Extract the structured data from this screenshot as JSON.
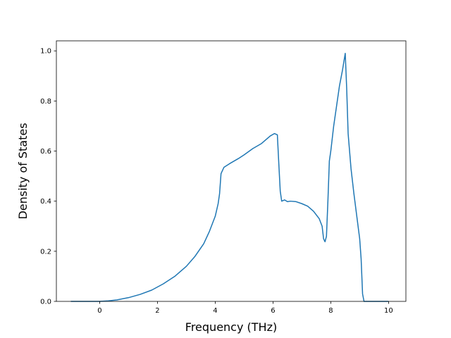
{
  "chart_data": {
    "type": "line",
    "title": "",
    "xlabel": "Frequency (THz)",
    "ylabel": "Density of States",
    "xlim": [
      -1.5,
      10.6
    ],
    "ylim": [
      0.0,
      1.04
    ],
    "x_ticks": [
      0,
      2,
      4,
      6,
      8,
      10
    ],
    "x_tick_labels": [
      "0",
      "2",
      "4",
      "6",
      "8",
      "10"
    ],
    "y_ticks": [
      0.0,
      0.2,
      0.4,
      0.6,
      0.8,
      1.0
    ],
    "y_tick_labels": [
      "0.0",
      "0.2",
      "0.4",
      "0.6",
      "0.8",
      "1.0"
    ],
    "grid": false,
    "legend": "none",
    "series": [
      {
        "color": "#1f77b4",
        "x": [
          -1.0,
          -0.5,
          0.0,
          0.3,
          0.6,
          1.0,
          1.4,
          1.8,
          2.2,
          2.6,
          3.0,
          3.3,
          3.6,
          3.8,
          4.0,
          4.1,
          4.15,
          4.2,
          4.3,
          4.5,
          4.8,
          5.0,
          5.3,
          5.6,
          5.9,
          6.05,
          6.15,
          6.2,
          6.25,
          6.3,
          6.4,
          6.5,
          6.6,
          6.8,
          7.0,
          7.2,
          7.4,
          7.6,
          7.7,
          7.75,
          7.8,
          7.85,
          7.9,
          7.95,
          8.0,
          8.1,
          8.2,
          8.3,
          8.4,
          8.5,
          8.55,
          8.6,
          8.7,
          8.8,
          9.0,
          9.05,
          9.1,
          9.15,
          9.3,
          9.6,
          10.0
        ],
        "y": [
          0.0,
          0.0,
          0.0,
          0.002,
          0.006,
          0.015,
          0.028,
          0.045,
          0.07,
          0.1,
          0.14,
          0.18,
          0.23,
          0.28,
          0.34,
          0.39,
          0.43,
          0.51,
          0.535,
          0.55,
          0.57,
          0.585,
          0.61,
          0.63,
          0.66,
          0.67,
          0.665,
          0.55,
          0.44,
          0.4,
          0.405,
          0.398,
          0.4,
          0.398,
          0.39,
          0.38,
          0.36,
          0.33,
          0.3,
          0.25,
          0.238,
          0.26,
          0.4,
          0.56,
          0.6,
          0.7,
          0.78,
          0.86,
          0.92,
          0.99,
          0.85,
          0.67,
          0.53,
          0.43,
          0.25,
          0.17,
          0.03,
          0.0,
          0.0,
          0.0,
          0.0
        ]
      }
    ]
  }
}
